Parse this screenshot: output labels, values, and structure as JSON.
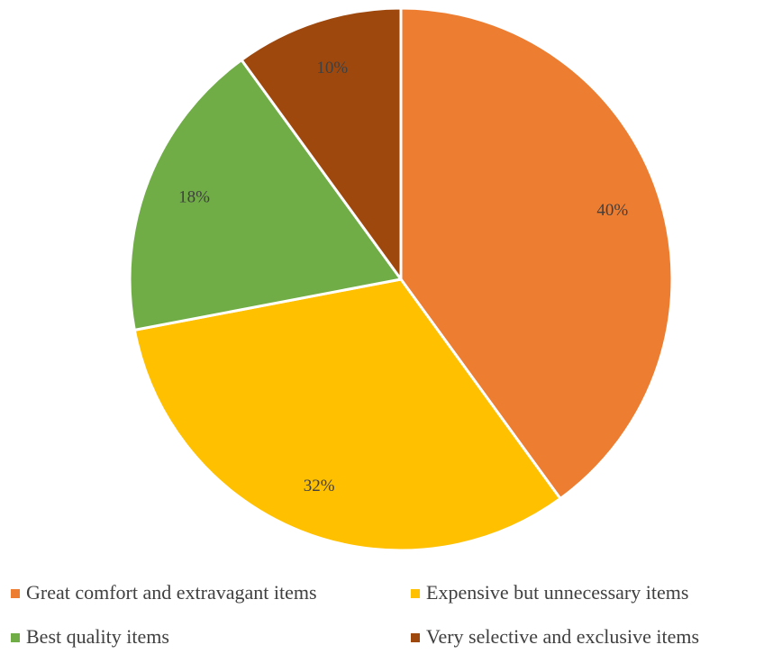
{
  "chart_data": {
    "type": "pie",
    "categories": [
      "Great comfort and extravagant items",
      "Expensive but unnecessary items",
      "Best quality items",
      "Very selective and exclusive items"
    ],
    "values": [
      40,
      32,
      18,
      10
    ],
    "data_labels": [
      "40%",
      "32%",
      "18%",
      "10%"
    ],
    "colors": [
      "#ED7D31",
      "#FFC000",
      "#70AD47",
      "#9E480E"
    ],
    "legend_position": "bottom",
    "start_angle": "12 o'clock, clockwise"
  }
}
